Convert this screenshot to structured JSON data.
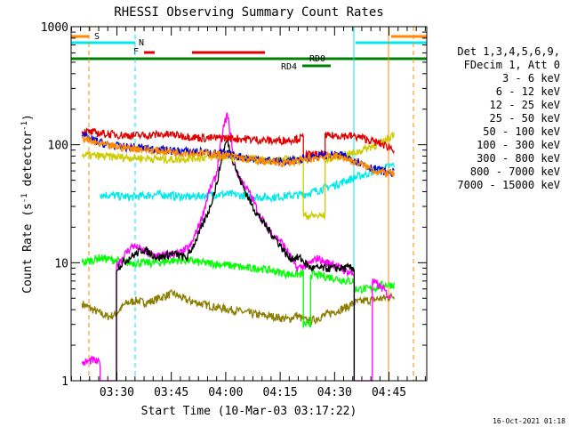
{
  "chart_data": {
    "type": "line",
    "title": "RHESSI Observing Summary Count Rates",
    "xlabel": "Start Time (10-Mar-03 03:17:22)",
    "ylabel": "Count Rate (s⁻¹ detector⁻¹)",
    "ylabel_parts": {
      "a": "Count Rate (s",
      "sup1": "-1",
      "b": " detector",
      "sup2": "-1",
      "c": ")"
    },
    "y_scale": "log",
    "ylim": [
      1,
      1000
    ],
    "y_ticks": [
      {
        "value": 1,
        "label": "1"
      },
      {
        "value": 10,
        "label": "10"
      },
      {
        "value": 100,
        "label": "100"
      },
      {
        "value": 1000,
        "label": "1000"
      }
    ],
    "xlim_minutes": [
      0,
      98
    ],
    "x_ticks": [
      {
        "minute": 12.6,
        "label": "03:30"
      },
      {
        "minute": 27.6,
        "label": "03:45"
      },
      {
        "minute": 42.6,
        "label": "04:00"
      },
      {
        "minute": 57.6,
        "label": "04:15"
      },
      {
        "minute": 72.6,
        "label": "04:30"
      },
      {
        "minute": 87.6,
        "label": "04:45"
      }
    ],
    "legend_header": [
      "Det 1,3,4,5,6,9,",
      "FDecim 1, Att 0"
    ],
    "legend": [
      {
        "label": "3 - 6 keV",
        "color": "#000000"
      },
      {
        "label": "6 - 12 keV",
        "color": "#ff00ff"
      },
      {
        "label": "12 - 25 keV",
        "color": "#00ff00"
      },
      {
        "label": "25 - 50 keV",
        "color": "#00e8e8"
      },
      {
        "label": "50 - 100 keV",
        "color": "#cccc00"
      },
      {
        "label": "100 - 300 keV",
        "color": "#e00000"
      },
      {
        "label": "300 - 800 keV",
        "color": "#0000dd"
      },
      {
        "label": "800 - 7000 keV",
        "color": "#ff8800"
      },
      {
        "label": "7000 - 15000 keV",
        "color": "#8b7d00"
      }
    ],
    "flags": [
      {
        "label": "S",
        "color": "#ff8800"
      },
      {
        "label": "N",
        "color": "#00e8e8"
      },
      {
        "label": "F",
        "color": "#e00000"
      },
      {
        "label": "RD0",
        "color": "#008000"
      },
      {
        "label": "RD4",
        "color": "#008000"
      }
    ],
    "series": [
      {
        "name": "3 - 6 keV",
        "color": "#000000",
        "points": [
          [
            12.5,
            1
          ],
          [
            12.5,
            9
          ],
          [
            16,
            11
          ],
          [
            20,
            13
          ],
          [
            24,
            11
          ],
          [
            28,
            12
          ],
          [
            32,
            11
          ],
          [
            35,
            17
          ],
          [
            38,
            28
          ],
          [
            40,
            45
          ],
          [
            42,
            90
          ],
          [
            43,
            110
          ],
          [
            44,
            85
          ],
          [
            46,
            55
          ],
          [
            48,
            40
          ],
          [
            50,
            30
          ],
          [
            52,
            24
          ],
          [
            55,
            18
          ],
          [
            57,
            15
          ],
          [
            60,
            11
          ],
          [
            63,
            11
          ],
          [
            66,
            9
          ],
          [
            68,
            9
          ],
          [
            70,
            9
          ],
          [
            72,
            9
          ],
          [
            74,
            9
          ],
          [
            76,
            9
          ],
          [
            78,
            9
          ],
          [
            78,
            1
          ]
        ]
      },
      {
        "name": "6 - 12 keV",
        "color": "#ff00ff",
        "points": [
          [
            3,
            1.4
          ],
          [
            6,
            1.5
          ],
          [
            8,
            1.4
          ],
          [
            8,
            1
          ],
          [
            12.5,
            1
          ],
          [
            12.5,
            9.5
          ],
          [
            15,
            12
          ],
          [
            17,
            14
          ],
          [
            19,
            13
          ],
          [
            21,
            12
          ],
          [
            24,
            11.5
          ],
          [
            26,
            11.5
          ],
          [
            28,
            12
          ],
          [
            30,
            12
          ],
          [
            33,
            14
          ],
          [
            36,
            24
          ],
          [
            38,
            40
          ],
          [
            40,
            55
          ],
          [
            41,
            90
          ],
          [
            42,
            140
          ],
          [
            43,
            180
          ],
          [
            44,
            120
          ],
          [
            45,
            70
          ],
          [
            46,
            55
          ],
          [
            48,
            45
          ],
          [
            50,
            35
          ],
          [
            52,
            25
          ],
          [
            54,
            20
          ],
          [
            56,
            17
          ],
          [
            58,
            15
          ],
          [
            60,
            12
          ],
          [
            62,
            9
          ],
          [
            65,
            9.5
          ],
          [
            68,
            11
          ],
          [
            70,
            10
          ],
          [
            72,
            10
          ],
          [
            74,
            9
          ],
          [
            76,
            8.5
          ],
          [
            78,
            8
          ],
          [
            78,
            1
          ],
          [
            83,
            1
          ],
          [
            83,
            7
          ],
          [
            86,
            6
          ],
          [
            88,
            5
          ]
        ]
      },
      {
        "name": "12 - 25 keV",
        "color": "#00ff00",
        "points": [
          [
            3,
            10
          ],
          [
            8,
            11
          ],
          [
            12,
            10.5
          ],
          [
            16,
            10
          ],
          [
            20,
            10
          ],
          [
            24,
            10
          ],
          [
            28,
            10.5
          ],
          [
            32,
            10.5
          ],
          [
            36,
            10
          ],
          [
            40,
            9.8
          ],
          [
            44,
            9.5
          ],
          [
            48,
            9
          ],
          [
            52,
            9
          ],
          [
            56,
            8.5
          ],
          [
            60,
            8
          ],
          [
            62,
            8
          ],
          [
            64,
            8
          ],
          [
            64,
            3
          ],
          [
            66,
            3
          ],
          [
            66,
            8
          ],
          [
            72,
            7.5
          ],
          [
            76,
            7
          ],
          [
            78,
            7
          ],
          [
            78,
            6
          ],
          [
            83,
            6
          ],
          [
            86,
            6.5
          ],
          [
            89,
            6.5
          ]
        ]
      },
      {
        "name": "25 - 50 keV",
        "color": "#00e8e8",
        "points": [
          [
            8,
            38
          ],
          [
            12,
            37
          ],
          [
            16,
            36
          ],
          [
            20,
            37
          ],
          [
            24,
            38
          ],
          [
            28,
            37
          ],
          [
            32,
            36
          ],
          [
            36,
            37
          ],
          [
            40,
            38
          ],
          [
            44,
            38
          ],
          [
            48,
            37
          ],
          [
            52,
            36
          ],
          [
            56,
            36
          ],
          [
            60,
            37
          ],
          [
            64,
            38
          ],
          [
            68,
            41
          ],
          [
            72,
            45
          ],
          [
            76,
            50
          ],
          [
            80,
            55
          ],
          [
            84,
            60
          ],
          [
            88,
            66
          ],
          [
            89,
            68
          ]
        ]
      },
      {
        "name": "50 - 100 keV",
        "color": "#cccc00",
        "points": [
          [
            3,
            82
          ],
          [
            8,
            80
          ],
          [
            12,
            79
          ],
          [
            16,
            78
          ],
          [
            20,
            77
          ],
          [
            24,
            76
          ],
          [
            28,
            75
          ],
          [
            32,
            77
          ],
          [
            36,
            78
          ],
          [
            40,
            79
          ],
          [
            44,
            78
          ],
          [
            48,
            76
          ],
          [
            52,
            75
          ],
          [
            56,
            74
          ],
          [
            60,
            75
          ],
          [
            64,
            75
          ],
          [
            64,
            25
          ],
          [
            70,
            25
          ],
          [
            70,
            75
          ],
          [
            74,
            80
          ],
          [
            78,
            85
          ],
          [
            82,
            95
          ],
          [
            86,
            105
          ],
          [
            89,
            125
          ]
        ]
      },
      {
        "name": "100 - 300 keV",
        "color": "#e00000",
        "points": [
          [
            3,
            130
          ],
          [
            8,
            125
          ],
          [
            12,
            122
          ],
          [
            16,
            120
          ],
          [
            20,
            120
          ],
          [
            24,
            122
          ],
          [
            28,
            122
          ],
          [
            32,
            118
          ],
          [
            36,
            114
          ],
          [
            40,
            114
          ],
          [
            44,
            114
          ],
          [
            48,
            112
          ],
          [
            52,
            110
          ],
          [
            56,
            108
          ],
          [
            60,
            110
          ],
          [
            64,
            115
          ],
          [
            64,
            82
          ],
          [
            70,
            82
          ],
          [
            70,
            118
          ],
          [
            74,
            120
          ],
          [
            78,
            118
          ],
          [
            80,
            115
          ],
          [
            82,
            110
          ],
          [
            84,
            105
          ],
          [
            86,
            100
          ],
          [
            88,
            95
          ],
          [
            89,
            92
          ]
        ]
      },
      {
        "name": "300 - 800 keV",
        "color": "#0000dd",
        "points": [
          [
            3,
            120
          ],
          [
            6,
            110
          ],
          [
            10,
            100
          ],
          [
            14,
            96
          ],
          [
            18,
            95
          ],
          [
            22,
            92
          ],
          [
            26,
            90
          ],
          [
            30,
            88
          ],
          [
            34,
            88
          ],
          [
            38,
            86
          ],
          [
            42,
            84
          ],
          [
            46,
            80
          ],
          [
            50,
            76
          ],
          [
            54,
            74
          ],
          [
            58,
            72
          ],
          [
            62,
            74
          ],
          [
            66,
            78
          ],
          [
            70,
            82
          ],
          [
            74,
            82
          ],
          [
            78,
            75
          ],
          [
            80,
            70
          ],
          [
            82,
            65
          ],
          [
            84,
            62
          ],
          [
            86,
            60
          ],
          [
            88,
            58
          ],
          [
            89,
            58
          ]
        ]
      },
      {
        "name": "800 - 7000 keV",
        "color": "#ff8800",
        "points": [
          [
            3,
            115
          ],
          [
            6,
            105
          ],
          [
            10,
            98
          ],
          [
            14,
            95
          ],
          [
            18,
            93
          ],
          [
            22,
            90
          ],
          [
            26,
            88
          ],
          [
            30,
            86
          ],
          [
            34,
            85
          ],
          [
            38,
            84
          ],
          [
            42,
            82
          ],
          [
            46,
            78
          ],
          [
            50,
            74
          ],
          [
            54,
            72
          ],
          [
            58,
            70
          ],
          [
            62,
            72
          ],
          [
            66,
            76
          ],
          [
            70,
            80
          ],
          [
            74,
            80
          ],
          [
            78,
            72
          ],
          [
            80,
            68
          ],
          [
            82,
            64
          ],
          [
            84,
            60
          ],
          [
            86,
            58
          ],
          [
            88,
            57
          ],
          [
            89,
            57
          ]
        ]
      },
      {
        "name": "7000 - 15000 keV",
        "color": "#8b7d00",
        "points": [
          [
            3,
            4.5
          ],
          [
            6,
            4
          ],
          [
            10,
            3.5
          ],
          [
            12,
            3.6
          ],
          [
            15,
            4.5
          ],
          [
            18,
            4.8
          ],
          [
            20,
            4.6
          ],
          [
            22,
            4.7
          ],
          [
            24,
            5
          ],
          [
            28,
            5.5
          ],
          [
            32,
            4.8
          ],
          [
            36,
            4.5
          ],
          [
            40,
            4.2
          ],
          [
            44,
            4
          ],
          [
            48,
            3.8
          ],
          [
            52,
            3.6
          ],
          [
            56,
            3.5
          ],
          [
            60,
            3.3
          ],
          [
            62,
            3.6
          ],
          [
            64,
            3.3
          ],
          [
            66,
            3.2
          ],
          [
            68,
            3.4
          ],
          [
            70,
            3.6
          ],
          [
            72,
            3.8
          ],
          [
            74,
            4
          ],
          [
            76,
            4.2
          ],
          [
            78,
            4.6
          ],
          [
            82,
            4.8
          ],
          [
            86,
            5
          ],
          [
            89,
            5.2
          ]
        ]
      }
    ]
  },
  "footer": {
    "timestamp": "16-Oct-2021 01:18"
  }
}
